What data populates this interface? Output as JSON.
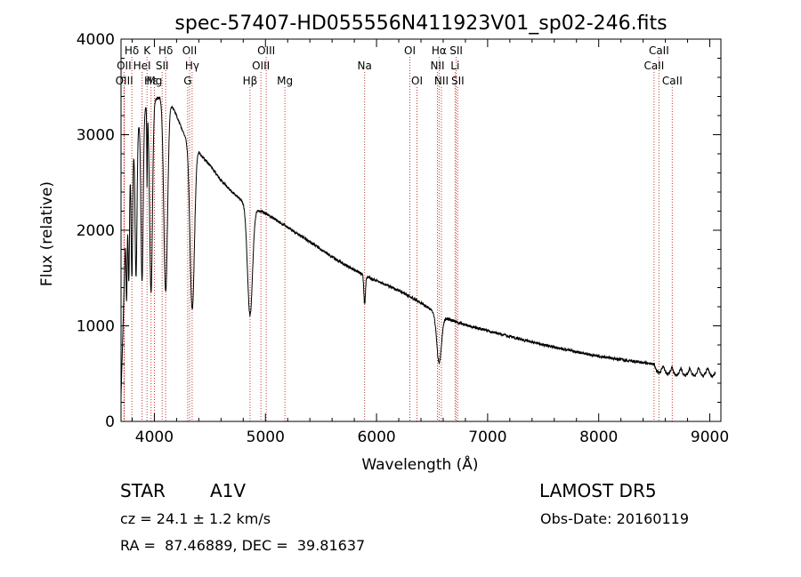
{
  "chart_data": {
    "type": "line",
    "title": "spec-57407-HD055556N411923V01_sp02-246.fits",
    "xlabel": "Wavelength (Å)",
    "ylabel": "Flux (relative)",
    "xlim": [
      3700,
      9100
    ],
    "ylim": [
      0,
      4000
    ],
    "xticks": [
      4000,
      5000,
      6000,
      7000,
      8000,
      9000
    ],
    "yticks": [
      0,
      1000,
      2000,
      3000,
      4000
    ],
    "x_minor_step": 200,
    "y_minor_step": 200,
    "continuum": [
      [
        3700,
        250
      ],
      [
        3740,
        1900
      ],
      [
        3780,
        2600
      ],
      [
        3830,
        3000
      ],
      [
        3890,
        3250
      ],
      [
        3970,
        3350
      ],
      [
        4060,
        3400
      ],
      [
        4120,
        3380
      ],
      [
        4200,
        3200
      ],
      [
        4260,
        3020
      ],
      [
        4300,
        2950
      ],
      [
        4380,
        2880
      ],
      [
        4420,
        2780
      ],
      [
        4500,
        2680
      ],
      [
        4600,
        2520
      ],
      [
        4700,
        2400
      ],
      [
        4800,
        2300
      ],
      [
        4870,
        2220
      ],
      [
        4900,
        2240
      ],
      [
        4950,
        2200
      ],
      [
        5000,
        2180
      ],
      [
        5200,
        2030
      ],
      [
        5400,
        1880
      ],
      [
        5600,
        1720
      ],
      [
        5800,
        1580
      ],
      [
        6000,
        1470
      ],
      [
        6200,
        1370
      ],
      [
        6400,
        1240
      ],
      [
        6560,
        1120
      ],
      [
        6600,
        1090
      ],
      [
        6800,
        1010
      ],
      [
        7000,
        950
      ],
      [
        7500,
        800
      ],
      [
        8000,
        680
      ],
      [
        8500,
        600
      ],
      [
        8700,
        560
      ],
      [
        9000,
        560
      ],
      [
        9050,
        550
      ]
    ],
    "absorption": [
      {
        "center": 3750,
        "depth": 0.4,
        "width": 7
      },
      {
        "center": 3770,
        "depth": 0.4,
        "width": 8
      },
      {
        "center": 3798,
        "depth": 0.45,
        "width": 9
      },
      {
        "center": 3835,
        "depth": 0.5,
        "width": 12
      },
      {
        "center": 3889,
        "depth": 0.55,
        "width": 14
      },
      {
        "center": 3934,
        "depth": 0.25,
        "width": 4
      },
      {
        "center": 3970,
        "depth": 0.6,
        "width": 18
      },
      {
        "center": 4102,
        "depth": 0.6,
        "width": 24
      },
      {
        "center": 4341,
        "depth": 0.6,
        "width": 28
      },
      {
        "center": 4861,
        "depth": 0.5,
        "width": 32
      },
      {
        "center": 5893,
        "depth": 0.2,
        "width": 10
      },
      {
        "center": 6563,
        "depth": 0.45,
        "width": 30
      }
    ],
    "tail_wiggle": {
      "start": 8500,
      "end": 9050,
      "period": 80,
      "amplitude": 80
    },
    "lines": [
      {
        "name": "Hδ",
        "wave": 3797,
        "row": 0
      },
      {
        "name": "K",
        "wave": 3934,
        "row": 0
      },
      {
        "name": "Hδ",
        "wave": 4102,
        "row": 0
      },
      {
        "name": "OII",
        "wave": 4317,
        "row": 0
      },
      {
        "name": "OIII",
        "wave": 5007,
        "row": 0
      },
      {
        "name": "OI",
        "wave": 6300,
        "row": 0
      },
      {
        "name": "Hα",
        "wave": 6563,
        "row": 0
      },
      {
        "name": "SII",
        "wave": 6717,
        "row": 0
      },
      {
        "name": "CaII",
        "wave": 8542,
        "row": 0
      },
      {
        "name": "OII",
        "wave": 3727,
        "row": 1
      },
      {
        "name": "HeI",
        "wave": 3889,
        "row": 1
      },
      {
        "name": "SII",
        "wave": 4070,
        "row": 1
      },
      {
        "name": "Hγ",
        "wave": 4340,
        "row": 1
      },
      {
        "name": "OIII",
        "wave": 4959,
        "row": 1
      },
      {
        "name": "Na",
        "wave": 5893,
        "row": 1
      },
      {
        "name": "NII",
        "wave": 6548,
        "row": 1
      },
      {
        "name": "Li",
        "wave": 6707,
        "row": 1
      },
      {
        "name": "CaII",
        "wave": 8498,
        "row": 1
      },
      {
        "name": "OIII",
        "wave": 3729,
        "row": 2
      },
      {
        "name": "Hε",
        "wave": 3970,
        "row": 2
      },
      {
        "name": "Mg",
        "wave": 4000,
        "row": 2
      },
      {
        "name": "G",
        "wave": 4300,
        "row": 2
      },
      {
        "name": "Hβ",
        "wave": 4861,
        "row": 2
      },
      {
        "name": "Mg",
        "wave": 5175,
        "row": 2
      },
      {
        "name": "OI",
        "wave": 6364,
        "row": 2
      },
      {
        "name": "NII",
        "wave": 6584,
        "row": 2
      },
      {
        "name": "SII",
        "wave": 6731,
        "row": 2
      },
      {
        "name": "CaII",
        "wave": 8662,
        "row": 2
      }
    ]
  },
  "info": {
    "object": "STAR",
    "subclass": "A1V",
    "survey": "LAMOST DR5",
    "cz": "cz = 24.1 ± 1.2 km/s",
    "obs_date": "Obs-Date: 20160119",
    "coords": "RA =  87.46889, DEC =  39.81637"
  }
}
